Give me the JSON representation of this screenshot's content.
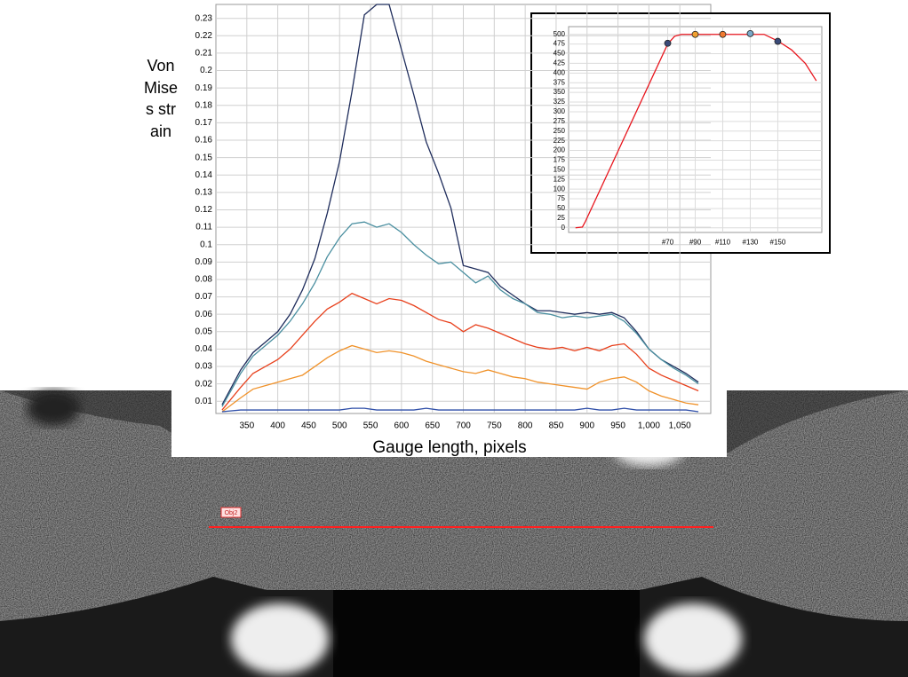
{
  "chart_data": [
    {
      "type": "line",
      "x_label": "Gauge length, pixels",
      "y_label": "Von Mises strain",
      "x": [
        310,
        340,
        360,
        380,
        400,
        420,
        440,
        460,
        480,
        500,
        520,
        540,
        560,
        580,
        600,
        620,
        640,
        660,
        680,
        700,
        720,
        740,
        760,
        780,
        800,
        820,
        840,
        860,
        880,
        900,
        920,
        940,
        960,
        980,
        1000,
        1020,
        1040,
        1060,
        1080
      ],
      "series": [
        {
          "color": "#1f2d5c",
          "values": [
            0.008,
            0.028,
            0.038,
            0.044,
            0.05,
            0.06,
            0.074,
            0.092,
            0.118,
            0.148,
            0.188,
            0.232,
            0.238,
            0.238,
            0.212,
            0.186,
            0.159,
            0.141,
            0.121,
            0.088,
            0.086,
            0.084,
            0.076,
            0.071,
            0.066,
            0.062,
            0.062,
            0.061,
            0.06,
            0.061,
            0.06,
            0.061,
            0.058,
            0.05,
            0.04,
            0.034,
            0.03,
            0.026,
            0.021
          ]
        },
        {
          "color": "#4a8fa0",
          "values": [
            0.007,
            0.026,
            0.036,
            0.042,
            0.048,
            0.056,
            0.066,
            0.078,
            0.093,
            0.104,
            0.112,
            0.113,
            0.11,
            0.112,
            0.107,
            0.1,
            0.094,
            0.089,
            0.09,
            0.084,
            0.078,
            0.082,
            0.074,
            0.069,
            0.066,
            0.061,
            0.06,
            0.058,
            0.059,
            0.058,
            0.059,
            0.06,
            0.056,
            0.049,
            0.04,
            0.034,
            0.029,
            0.025,
            0.02
          ]
        },
        {
          "color": "#e8401c",
          "values": [
            0.005,
            0.018,
            0.026,
            0.03,
            0.034,
            0.04,
            0.048,
            0.056,
            0.063,
            0.067,
            0.072,
            0.069,
            0.066,
            0.069,
            0.068,
            0.065,
            0.061,
            0.057,
            0.055,
            0.05,
            0.054,
            0.052,
            0.049,
            0.046,
            0.043,
            0.041,
            0.04,
            0.041,
            0.039,
            0.041,
            0.039,
            0.042,
            0.043,
            0.037,
            0.029,
            0.025,
            0.022,
            0.019,
            0.016
          ]
        },
        {
          "color": "#f0922a",
          "values": [
            0.004,
            0.012,
            0.017,
            0.019,
            0.021,
            0.023,
            0.025,
            0.03,
            0.035,
            0.039,
            0.042,
            0.04,
            0.038,
            0.039,
            0.038,
            0.036,
            0.033,
            0.031,
            0.029,
            0.027,
            0.026,
            0.028,
            0.026,
            0.024,
            0.023,
            0.021,
            0.02,
            0.019,
            0.018,
            0.017,
            0.021,
            0.023,
            0.024,
            0.021,
            0.016,
            0.013,
            0.011,
            0.009,
            0.008
          ]
        },
        {
          "color": "#2f4fa8",
          "values": [
            0.004,
            0.005,
            0.005,
            0.005,
            0.005,
            0.005,
            0.005,
            0.005,
            0.005,
            0.005,
            0.006,
            0.006,
            0.005,
            0.005,
            0.005,
            0.005,
            0.006,
            0.005,
            0.005,
            0.005,
            0.005,
            0.005,
            0.005,
            0.005,
            0.005,
            0.005,
            0.005,
            0.005,
            0.005,
            0.006,
            0.005,
            0.005,
            0.006,
            0.005,
            0.005,
            0.005,
            0.005,
            0.005,
            0.004
          ]
        }
      ],
      "xlim": [
        300,
        1100
      ],
      "xticks": [
        350,
        400,
        450,
        500,
        550,
        600,
        650,
        700,
        750,
        800,
        850,
        900,
        950,
        {
          "value": 1000,
          "label": "1,000"
        },
        {
          "value": 1050,
          "label": "1,050"
        }
      ],
      "ylim": [
        0.003,
        0.238
      ],
      "yticks": [
        0.01,
        0.02,
        0.03,
        0.04,
        0.05,
        0.06,
        0.07,
        0.08,
        0.09,
        0.1,
        0.11,
        0.12,
        0.13,
        0.14,
        0.15,
        0.16,
        0.17,
        0.18,
        0.19,
        0.2,
        0.21,
        0.22,
        0.23
      ],
      "grid": true
    },
    {
      "type": "line",
      "x": [
        3,
        8,
        10,
        70,
        75,
        80,
        140,
        150,
        160,
        170,
        178
      ],
      "series": [
        {
          "color": "#e8141c",
          "values": [
            0,
            2,
            15,
            475,
            495,
            500,
            500,
            483,
            460,
            425,
            380
          ]
        }
      ],
      "markers": {
        "x": [
          70,
          90,
          110,
          130,
          150
        ],
        "values": [
          477,
          500,
          500,
          502,
          482
        ],
        "colors": [
          "#3a4a78",
          "#f0a030",
          "#f07a30",
          "#7aa8c8",
          "#3a4a78"
        ]
      },
      "xlim": [
        -2,
        182
      ],
      "xticks": [
        {
          "value": 70,
          "label": "#70"
        },
        {
          "value": 90,
          "label": "#90"
        },
        {
          "value": 110,
          "label": "#110"
        },
        {
          "value": 130,
          "label": "#130"
        },
        {
          "value": 150,
          "label": "#150"
        }
      ],
      "ylim": [
        -12,
        520
      ],
      "yticks": [
        0,
        25,
        50,
        75,
        100,
        125,
        150,
        175,
        200,
        225,
        250,
        275,
        300,
        325,
        350,
        375,
        400,
        425,
        450,
        475,
        500
      ],
      "grid": true
    }
  ],
  "image": {
    "label": "Obj2"
  }
}
